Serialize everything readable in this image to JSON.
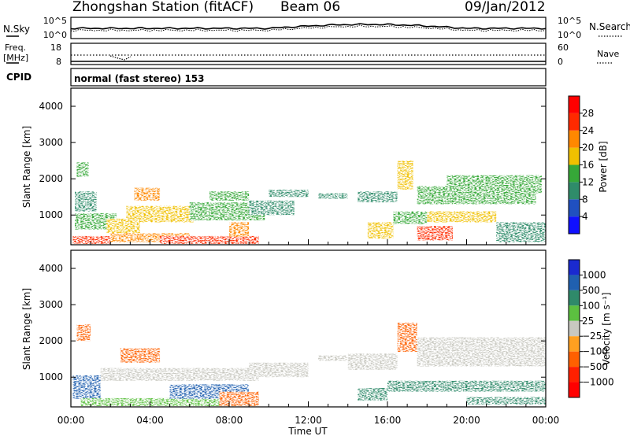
{
  "header": {
    "station": "Zhongshan Station (fitACF)",
    "beam": "Beam 06",
    "date": "09/Jan/2012"
  },
  "sky_panel": {
    "left_label": "N.Sky",
    "right_label": "N.Search",
    "y_ticks_left": [
      "10^5",
      "10^0"
    ],
    "y_ticks_right": [
      "10^5",
      "10^0"
    ]
  },
  "freq_panel": {
    "left_label_line1": "Freq.",
    "left_label_line2": "[MHz]",
    "right_label": "Nave",
    "y_ticks_left": [
      "18",
      "8"
    ],
    "y_ticks_right": [
      "60",
      "0"
    ]
  },
  "cpid": {
    "label": "CPID",
    "text": "normal (fast stereo) 153"
  },
  "power_panel": {
    "ylabel": "Slant Range [km]",
    "y_ticks": [
      "1000",
      "2000",
      "3000",
      "4000"
    ],
    "colorbar_label": "Power [dB]",
    "colorbar_ticks": [
      "4",
      "8",
      "12",
      "16",
      "20",
      "24",
      "28"
    ],
    "colors": [
      "#1010ff",
      "#2050c0",
      "#2f8c6a",
      "#36a838",
      "#f0c000",
      "#ff8800",
      "#ff2a00",
      "#ff0000"
    ]
  },
  "velocity_panel": {
    "ylabel": "Slant Range [km]",
    "y_ticks": [
      "1000",
      "2000",
      "3000",
      "4000"
    ],
    "colorbar_label": "Velocity [m s⁻¹]",
    "colorbar_ticks": [
      "1000",
      "500",
      "100",
      "25",
      "−25",
      "−100",
      "−500",
      "−1000"
    ],
    "colors": [
      "#1a2ad0",
      "#2060b0",
      "#2f8a6a",
      "#5cc040",
      "#c8c8c0",
      "#ffa020",
      "#ff6000",
      "#ff2000",
      "#ff0000"
    ]
  },
  "xaxis": {
    "label": "Time UT",
    "ticks": [
      "00:00",
      "04:00",
      "08:00",
      "12:00",
      "16:00",
      "20:00",
      "00:00"
    ]
  },
  "chart_data": [
    {
      "type": "line",
      "title": "Zhongshan Station (fitACF)",
      "series": [
        {
          "name": "N.Sky"
        },
        {
          "name": "N.Search"
        }
      ],
      "x": [
        "00:00",
        "04:00",
        "08:00",
        "12:00",
        "16:00",
        "20:00",
        "24:00"
      ],
      "ylim": [
        1,
        100000
      ],
      "scale": "log"
    },
    {
      "type": "line",
      "series": [
        {
          "name": "Freq."
        },
        {
          "name": "Nave"
        }
      ],
      "ylim_left": [
        8,
        18
      ],
      "ylim_right": [
        0,
        60
      ]
    },
    {
      "type": "heatmap",
      "xlabel": "Time UT",
      "ylabel": "Slant Range [km]",
      "xlim": [
        0,
        24
      ],
      "ylim": [
        180,
        4500
      ],
      "colorbar": {
        "label": "Power [dB]",
        "range": [
          0,
          30
        ]
      },
      "regions": [
        {
          "t": [
            0.1,
            2.0
          ],
          "r": [
            200,
            420
          ],
          "v": 26
        },
        {
          "t": [
            0.2,
            2.3
          ],
          "r": [
            600,
            1050
          ],
          "v": 15
        },
        {
          "t": [
            0.2,
            1.3
          ],
          "r": [
            1100,
            1650
          ],
          "v": 11
        },
        {
          "t": [
            0.3,
            0.9
          ],
          "r": [
            2050,
            2450
          ],
          "v": 13
        },
        {
          "t": [
            1.8,
            3.5
          ],
          "r": [
            500,
            900
          ],
          "v": 16
        },
        {
          "t": [
            2.0,
            6.0
          ],
          "r": [
            250,
            500
          ],
          "v": 21
        },
        {
          "t": [
            2.8,
            6.2
          ],
          "r": [
            800,
            1250
          ],
          "v": 17
        },
        {
          "t": [
            3.2,
            4.5
          ],
          "r": [
            1400,
            1750
          ],
          "v": 20
        },
        {
          "t": [
            4.5,
            9.5
          ],
          "r": [
            200,
            420
          ],
          "v": 24
        },
        {
          "t": [
            6.0,
            9.8
          ],
          "r": [
            850,
            1350
          ],
          "v": 15
        },
        {
          "t": [
            7.0,
            9.0
          ],
          "r": [
            1400,
            1650
          ],
          "v": 13
        },
        {
          "t": [
            8.0,
            9.0
          ],
          "r": [
            400,
            800
          ],
          "v": 20
        },
        {
          "t": [
            9.0,
            11.3
          ],
          "r": [
            1000,
            1400
          ],
          "v": 10
        },
        {
          "t": [
            10.0,
            12.0
          ],
          "r": [
            1500,
            1700
          ],
          "v": 9
        },
        {
          "t": [
            12.5,
            14.0
          ],
          "r": [
            1450,
            1600
          ],
          "v": 9
        },
        {
          "t": [
            14.5,
            16.5
          ],
          "r": [
            1350,
            1650
          ],
          "v": 11
        },
        {
          "t": [
            15.0,
            16.3
          ],
          "r": [
            350,
            800
          ],
          "v": 18
        },
        {
          "t": [
            16.3,
            18.0
          ],
          "r": [
            750,
            1100
          ],
          "v": 14
        },
        {
          "t": [
            16.5,
            17.3
          ],
          "r": [
            1700,
            2500
          ],
          "v": 17
        },
        {
          "t": [
            17.5,
            19.3
          ],
          "r": [
            300,
            700
          ],
          "v": 27
        },
        {
          "t": [
            18.0,
            21.5
          ],
          "r": [
            800,
            1100
          ],
          "v": 16
        },
        {
          "t": [
            17.5,
            23.5
          ],
          "r": [
            1300,
            1800
          ],
          "v": 14
        },
        {
          "t": [
            19.0,
            23.8
          ],
          "r": [
            1600,
            2100
          ],
          "v": 12
        },
        {
          "t": [
            21.5,
            24.0
          ],
          "r": [
            250,
            800
          ],
          "v": 9
        }
      ]
    },
    {
      "type": "heatmap",
      "xlabel": "Time UT",
      "ylabel": "Slant Range [km]",
      "xlim": [
        0,
        24
      ],
      "ylim": [
        180,
        4500
      ],
      "colorbar": {
        "label": "Velocity [m s⁻¹]",
        "range": [
          -1000,
          1000
        ]
      },
      "regions": [
        {
          "t": [
            0.1,
            1.5
          ],
          "r": [
            400,
            1050
          ],
          "v": 700
        },
        {
          "t": [
            0.3,
            1.0
          ],
          "r": [
            2000,
            2450
          ],
          "v": -300
        },
        {
          "t": [
            0.5,
            7.5
          ],
          "r": [
            200,
            420
          ],
          "v": 80
        },
        {
          "t": [
            1.5,
            9.5
          ],
          "r": [
            900,
            1250
          ],
          "v": 10
        },
        {
          "t": [
            2.5,
            4.5
          ],
          "r": [
            1400,
            1800
          ],
          "v": -200
        },
        {
          "t": [
            5.0,
            9.0
          ],
          "r": [
            400,
            800
          ],
          "v": 600
        },
        {
          "t": [
            7.5,
            9.5
          ],
          "r": [
            200,
            600
          ],
          "v": -300
        },
        {
          "t": [
            9.0,
            12.0
          ],
          "r": [
            1000,
            1400
          ],
          "v": 10
        },
        {
          "t": [
            12.5,
            14.0
          ],
          "r": [
            1450,
            1600
          ],
          "v": -10
        },
        {
          "t": [
            14.0,
            16.5
          ],
          "r": [
            1200,
            1650
          ],
          "v": 10
        },
        {
          "t": [
            14.5,
            16.0
          ],
          "r": [
            350,
            700
          ],
          "v": 200
        },
        {
          "t": [
            16.0,
            24.0
          ],
          "r": [
            600,
            900
          ],
          "v": 150
        },
        {
          "t": [
            16.5,
            17.5
          ],
          "r": [
            1700,
            2500
          ],
          "v": -400
        },
        {
          "t": [
            17.5,
            24.0
          ],
          "r": [
            1300,
            2100
          ],
          "v": 0
        },
        {
          "t": [
            20.0,
            24.0
          ],
          "r": [
            250,
            450
          ],
          "v": 120
        }
      ]
    }
  ]
}
